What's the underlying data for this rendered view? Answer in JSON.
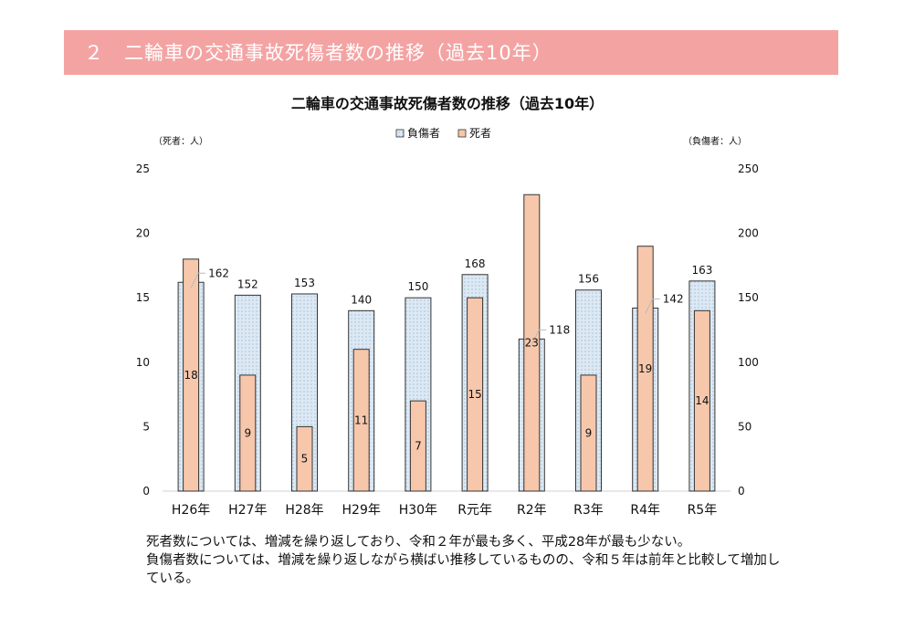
{
  "section": {
    "heading": "２　二輪車の交通事故死傷者数の推移（過去10年）"
  },
  "chart_data": {
    "type": "bar",
    "title": "二輪車の交通事故死傷者数の推移（過去10年）",
    "categories": [
      "H26年",
      "H27年",
      "H28年",
      "H29年",
      "H30年",
      "R元年",
      "R2年",
      "R3年",
      "R4年",
      "R5年"
    ],
    "series": [
      {
        "name": "負傷者",
        "axis": "right",
        "values": [
          162,
          152,
          153,
          140,
          150,
          168,
          118,
          156,
          142,
          163
        ],
        "color": "#dce9f4",
        "edge": "#333333"
      },
      {
        "name": "死者",
        "axis": "left",
        "values": [
          18,
          9,
          5,
          11,
          7,
          15,
          23,
          9,
          19,
          14
        ],
        "color": "#f7c7ac",
        "edge": "#333333"
      }
    ],
    "left_axis": {
      "label": "（死者：人）",
      "range": [
        0,
        25
      ],
      "ticks": [
        0,
        5,
        10,
        15,
        20,
        25
      ]
    },
    "right_axis": {
      "label": "（負傷者：人）",
      "range": [
        0,
        250
      ],
      "ticks": [
        0,
        50,
        100,
        150,
        200,
        250
      ]
    },
    "legend_position": "top-center",
    "grid": false
  },
  "caption": {
    "line1": "死者数については、増減を繰り返しており、令和２年が最も多く、平成28年が最も少ない。",
    "line2": "負傷者数については、増減を繰り返しながら横ばい推移しているものの、令和５年は前年と比較して増加している。"
  }
}
